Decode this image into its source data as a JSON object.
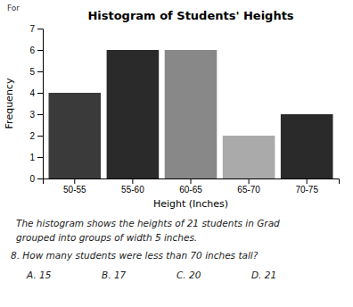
{
  "chart_data": {
    "type": "bar",
    "title": "Histogram of Students' Heights",
    "xlabel": "Height (Inches)",
    "ylabel": "Frequency",
    "categories": [
      "50-55",
      "55-60",
      "60-65",
      "65-70",
      "70-75"
    ],
    "values": [
      4,
      6,
      6,
      2,
      3
    ],
    "colors": [
      "#3a3a3a",
      "#2a2a2a",
      "#888888",
      "#aaaaaa",
      "#2a2a2a"
    ],
    "ylim": [
      0,
      7
    ],
    "yticks": [
      0,
      1,
      2,
      3,
      4,
      5,
      6,
      7
    ],
    "annotations": [
      "For",
      "The histogram shows the heights of 21 students in Grad",
      "grouped into groups of width 5 inches.",
      "8.  How many students were less than 70 inches tall?",
      "A.  15",
      "B.  17",
      "C.  20",
      "D.  21"
    ]
  }
}
